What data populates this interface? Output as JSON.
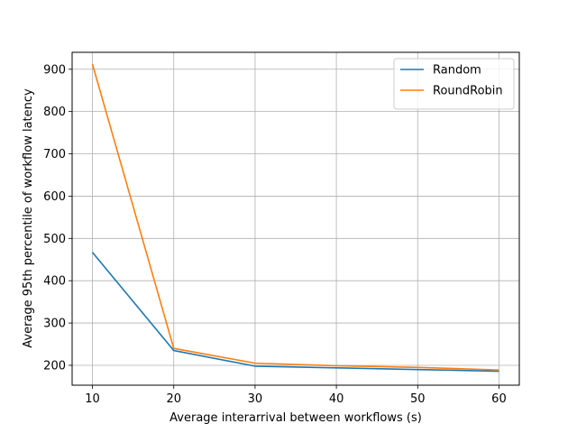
{
  "chart_data": {
    "type": "line",
    "title": "",
    "xlabel": "Average interarrival between workflows (s)",
    "ylabel": "Average 95th percentile of workflow latency",
    "x": [
      10,
      20,
      30,
      40,
      50,
      60
    ],
    "xticks": [
      10,
      20,
      30,
      40,
      50,
      60
    ],
    "yticks": [
      200,
      300,
      400,
      500,
      600,
      700,
      800,
      900
    ],
    "xlim": [
      7.5,
      62.5
    ],
    "ylim": [
      153,
      940
    ],
    "grid": true,
    "legend_position": "top-right",
    "series": [
      {
        "name": "Random",
        "color": "#1f77b4",
        "values": [
          467,
          235,
          198,
          194,
          190,
          186
        ]
      },
      {
        "name": "RoundRobin",
        "color": "#ff7f0e",
        "values": [
          912,
          240,
          205,
          199,
          195,
          189
        ]
      }
    ]
  }
}
